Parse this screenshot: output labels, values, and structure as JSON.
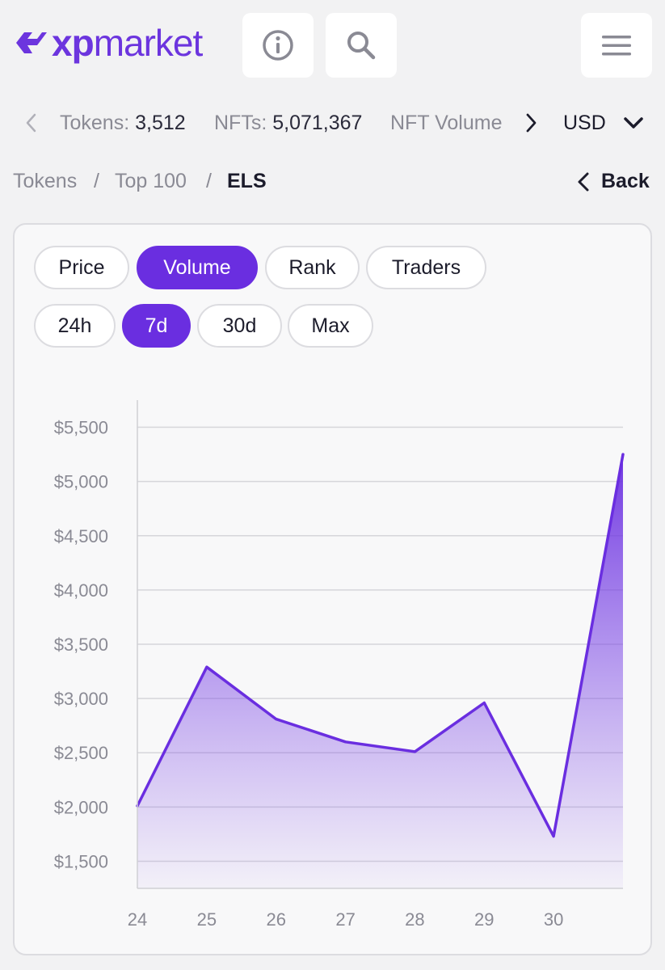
{
  "brand": {
    "name_light": "xp",
    "name_rest": "market",
    "color": "#6c35de"
  },
  "header": {
    "icons": [
      "info-icon",
      "search-icon",
      "menu-icon"
    ]
  },
  "stats": {
    "tokens_label": "Tokens:",
    "tokens_value": "3,512",
    "nfts_label": "NFTs:",
    "nfts_value": "5,071,367",
    "nft_volume_label": "NFT Volume",
    "currency": "USD"
  },
  "breadcrumb": {
    "items": [
      "Tokens",
      "Top 100",
      "ELS"
    ],
    "separator": "/",
    "back_label": "Back"
  },
  "metric_tabs": [
    {
      "label": "Price",
      "active": false
    },
    {
      "label": "Volume",
      "active": true
    },
    {
      "label": "Rank",
      "active": false
    },
    {
      "label": "Traders",
      "active": false
    }
  ],
  "range_tabs": [
    {
      "label": "24h",
      "active": false
    },
    {
      "label": "7d",
      "active": true
    },
    {
      "label": "30d",
      "active": false
    },
    {
      "label": "Max",
      "active": false
    }
  ],
  "accent_color": "#6a2ee0",
  "chart_data": {
    "type": "area",
    "x": [
      24,
      25,
      26,
      27,
      28,
      29,
      30,
      31
    ],
    "x_tick_labels": [
      "24",
      "25",
      "26",
      "27",
      "28",
      "29",
      "30"
    ],
    "y_tick_labels": [
      "$1,500",
      "$2,000",
      "$2,500",
      "$3,000",
      "$3,500",
      "$4,000",
      "$4,500",
      "$5,000",
      "$5,500"
    ],
    "y_ticks": [
      1500,
      2000,
      2500,
      3000,
      3500,
      4000,
      4500,
      5000,
      5500
    ],
    "series": [
      {
        "values": [
          2010,
          3290,
          2810,
          2600,
          2510,
          2960,
          1730,
          5250
        ]
      }
    ],
    "ylim": [
      1250,
      5750
    ],
    "grid": true,
    "color": "#6a2ee0"
  }
}
